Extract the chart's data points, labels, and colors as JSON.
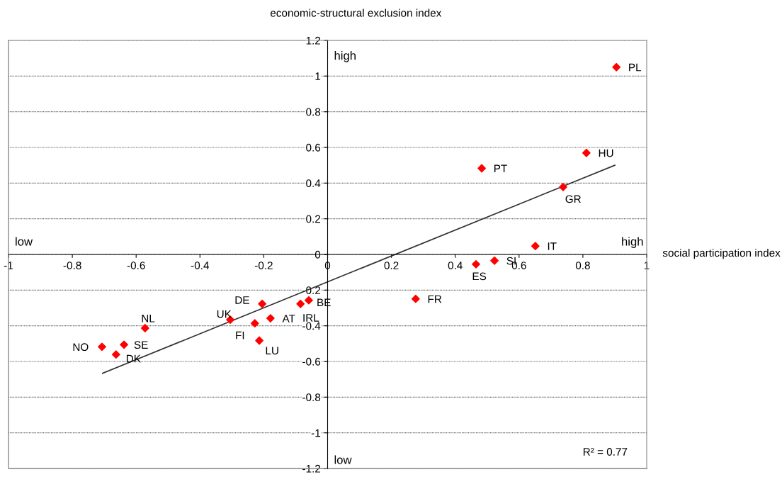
{
  "chart_data": {
    "type": "scatter",
    "ylabel": "economic-structural exclusion index",
    "xlabel": "social participation index",
    "xlim": [
      -1,
      1
    ],
    "xticks": [
      -1,
      -0.8,
      -0.6,
      -0.4,
      -0.2,
      0,
      0.2,
      0.4,
      0.6,
      0.8,
      1
    ],
    "ylim": [
      -1.2,
      1.2
    ],
    "yticks": [
      -1.2,
      -1,
      -0.8,
      -0.6,
      -0.4,
      -0.2,
      0,
      0.2,
      0.4,
      0.6,
      0.8,
      1,
      1.2
    ],
    "grid": "y",
    "series": [
      {
        "marker": "diamond",
        "color": "#ff0000",
        "x": [
          0.905,
          0.811,
          0.483,
          0.738,
          0.651,
          0.523,
          0.465,
          0.276,
          -0.059,
          -0.085,
          -0.205,
          -0.179,
          -0.305,
          -0.228,
          -0.214,
          -0.572,
          -0.707,
          -0.638,
          -0.663
        ],
        "values": [
          1.05,
          0.569,
          0.483,
          0.378,
          0.047,
          -0.035,
          -0.055,
          -0.249,
          -0.257,
          -0.277,
          -0.277,
          -0.358,
          -0.366,
          -0.386,
          -0.483,
          -0.413,
          -0.518,
          -0.506,
          -0.561
        ]
      },
      {
        "type": "line",
        "marker": "none",
        "color": "#333333",
        "x": [
          -0.705,
          0.9
        ],
        "values": [
          -0.666,
          0.5
        ]
      }
    ],
    "annotations": [
      {
        "text": "PL",
        "x": 0.905,
        "y": 1.05
      },
      {
        "text": "HU",
        "x": 0.811,
        "y": 0.569
      },
      {
        "text": "PT",
        "x": 0.483,
        "y": 0.483
      },
      {
        "text": "GR",
        "x": 0.738,
        "y": 0.378
      },
      {
        "text": "IT",
        "x": 0.651,
        "y": 0.047
      },
      {
        "text": "SI",
        "x": 0.523,
        "y": -0.035
      },
      {
        "text": "ES",
        "x": 0.465,
        "y": -0.055
      },
      {
        "text": "FR",
        "x": 0.276,
        "y": -0.249
      },
      {
        "text": "BE",
        "x": -0.059,
        "y": -0.257
      },
      {
        "text": "IRL",
        "x": -0.085,
        "y": -0.277
      },
      {
        "text": "DE",
        "x": -0.205,
        "y": -0.277
      },
      {
        "text": "AT",
        "x": -0.179,
        "y": -0.358
      },
      {
        "text": "UK",
        "x": -0.305,
        "y": -0.366
      },
      {
        "text": "FI",
        "x": -0.228,
        "y": -0.386
      },
      {
        "text": "LU",
        "x": -0.214,
        "y": -0.483
      },
      {
        "text": "NL",
        "x": -0.572,
        "y": -0.413
      },
      {
        "text": "NO",
        "x": -0.707,
        "y": -0.518
      },
      {
        "text": "SE",
        "x": -0.638,
        "y": -0.506
      },
      {
        "text": "DK",
        "x": -0.663,
        "y": -0.561
      },
      "high",
      "low",
      "high",
      "low",
      "R² = 0.77"
    ]
  }
}
